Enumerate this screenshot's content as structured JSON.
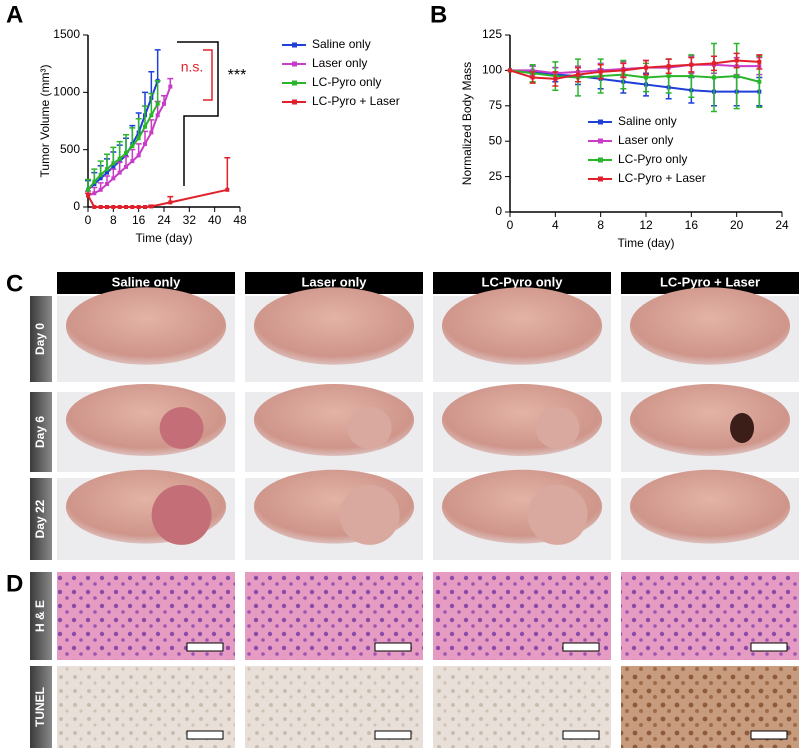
{
  "chart_data": [
    {
      "type": "line",
      "xlabel": "Time (day)",
      "ylabel": "Tumor Volume (mm³)",
      "xlim": [
        0,
        48
      ],
      "xticks": [
        0,
        8,
        16,
        24,
        32,
        40,
        48
      ],
      "ylim": [
        0,
        1500
      ],
      "yticks": [
        0,
        500,
        1000,
        1500
      ],
      "error_bars": "upper",
      "legend": "right-outside",
      "annotations": [
        "n.s.",
        "***"
      ],
      "series": [
        {
          "name": "Saline only",
          "color": "#1f3fd6",
          "x": [
            0,
            2,
            4,
            6,
            8,
            10,
            12,
            14,
            16,
            18,
            20,
            22
          ],
          "values": [
            150,
            200,
            250,
            300,
            350,
            400,
            450,
            550,
            650,
            800,
            950,
            1100
          ],
          "errors": [
            80,
            100,
            110,
            120,
            130,
            140,
            150,
            160,
            170,
            200,
            230,
            270
          ]
        },
        {
          "name": "Laser only",
          "color": "#c83cc8",
          "x": [
            0,
            2,
            4,
            6,
            8,
            10,
            12,
            14,
            16,
            18,
            20,
            22,
            24,
            26
          ],
          "values": [
            100,
            120,
            150,
            200,
            250,
            300,
            350,
            400,
            450,
            550,
            650,
            800,
            900,
            1050
          ],
          "errors": [
            40,
            50,
            60,
            70,
            80,
            90,
            90,
            100,
            100,
            110,
            110,
            120,
            70,
            70
          ]
        },
        {
          "name": "LC-Pyro only",
          "color": "#2bb52b",
          "x": [
            0,
            2,
            4,
            6,
            8,
            10,
            12,
            14,
            16,
            18,
            20,
            22
          ],
          "values": [
            150,
            220,
            280,
            330,
            380,
            420,
            470,
            530,
            600,
            700,
            800,
            900
          ],
          "errors": [
            90,
            110,
            120,
            130,
            140,
            150,
            160,
            160,
            170,
            180,
            190,
            200
          ]
        },
        {
          "name": "LC-Pyro + Laser",
          "color": "#e0202a",
          "x": [
            0,
            2,
            4,
            6,
            8,
            10,
            12,
            14,
            16,
            18,
            20,
            26,
            44
          ],
          "values": [
            100,
            0,
            0,
            0,
            0,
            0,
            0,
            0,
            0,
            0,
            5,
            40,
            150
          ],
          "errors": [
            20,
            0,
            0,
            0,
            0,
            0,
            0,
            0,
            0,
            0,
            10,
            50,
            280
          ]
        }
      ]
    },
    {
      "type": "line",
      "xlabel": "Time (day)",
      "ylabel": "Normalized Body Mass",
      "xlim": [
        0,
        24
      ],
      "xticks": [
        0,
        4,
        8,
        12,
        16,
        20,
        24
      ],
      "ylim": [
        0,
        125
      ],
      "yticks": [
        0,
        25,
        50,
        75,
        100,
        125
      ],
      "error_bars": "both",
      "legend": "lower center",
      "series": [
        {
          "name": "Saline only",
          "color": "#1f3fd6",
          "x": [
            0,
            2,
            4,
            6,
            8,
            10,
            12,
            14,
            16,
            18,
            20,
            22
          ],
          "values": [
            100,
            99,
            97,
            96,
            94,
            92,
            90,
            88,
            86,
            85,
            85,
            85
          ],
          "errors": [
            0,
            4,
            5,
            6,
            7,
            8,
            8,
            8,
            9,
            10,
            10,
            10
          ]
        },
        {
          "name": "Laser only",
          "color": "#c83cc8",
          "x": [
            0,
            2,
            4,
            6,
            8,
            10,
            12,
            14,
            16,
            18,
            20,
            22
          ],
          "values": [
            100,
            100,
            98,
            99,
            100,
            101,
            102,
            102,
            104,
            104,
            103,
            103
          ],
          "errors": [
            0,
            3,
            4,
            4,
            5,
            5,
            5,
            6,
            6,
            6,
            6,
            6
          ]
        },
        {
          "name": "LC-Pyro only",
          "color": "#2bb52b",
          "x": [
            0,
            2,
            4,
            6,
            8,
            10,
            12,
            14,
            16,
            18,
            20,
            22
          ],
          "values": [
            100,
            98,
            96,
            95,
            96,
            97,
            95,
            96,
            96,
            95,
            96,
            92
          ],
          "errors": [
            0,
            6,
            10,
            13,
            12,
            10,
            10,
            12,
            15,
            24,
            23,
            18
          ]
        },
        {
          "name": "LC-Pyro + Laser",
          "color": "#e0202a",
          "x": [
            0,
            2,
            4,
            6,
            8,
            10,
            12,
            14,
            16,
            18,
            20,
            22
          ],
          "values": [
            100,
            95,
            94,
            97,
            99,
            100,
            102,
            103,
            104,
            105,
            107,
            106
          ],
          "errors": [
            0,
            4,
            5,
            5,
            5,
            5,
            5,
            5,
            5,
            5,
            5,
            5
          ]
        }
      ]
    }
  ],
  "panels": {
    "labels": [
      "A",
      "B",
      "C",
      "D"
    ],
    "columns": [
      "Saline only",
      "Laser only",
      "LC-Pyro only",
      "LC-Pyro + Laser"
    ],
    "photo_rows": [
      "Day 0",
      "Day 6",
      "Day 22"
    ],
    "histology_rows": [
      "H & E",
      "TUNEL"
    ]
  }
}
